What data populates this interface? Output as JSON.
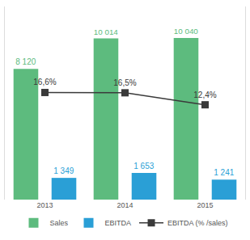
{
  "chart_data": {
    "type": "bar",
    "categories": [
      "2013",
      "2014",
      "2015"
    ],
    "series": [
      {
        "name": "Sales",
        "type": "bar",
        "color": "#5dbb7e",
        "values": [
          8120,
          10014,
          10040
        ],
        "value_labels": [
          "8 120",
          "10 014",
          "10 040"
        ]
      },
      {
        "name": "EBITDA",
        "type": "bar",
        "color": "#2a9fd6",
        "values": [
          1349,
          1653,
          1241
        ],
        "value_labels": [
          "1 349",
          "1 653",
          "1 241"
        ]
      },
      {
        "name": "EBITDA (% /sales)",
        "type": "line",
        "axis": "y2",
        "color": "#3a3a3a",
        "marker": "square",
        "values": [
          16.6,
          16.5,
          12.4
        ],
        "value_labels": [
          "16,6%",
          "16,5%",
          "12,4%"
        ]
      }
    ],
    "ylim": [
      0,
      12000
    ],
    "y2lim": [
      -20,
      46
    ],
    "data_labels": true,
    "tick_labels": "x",
    "grid": false,
    "legend": "bottom"
  }
}
